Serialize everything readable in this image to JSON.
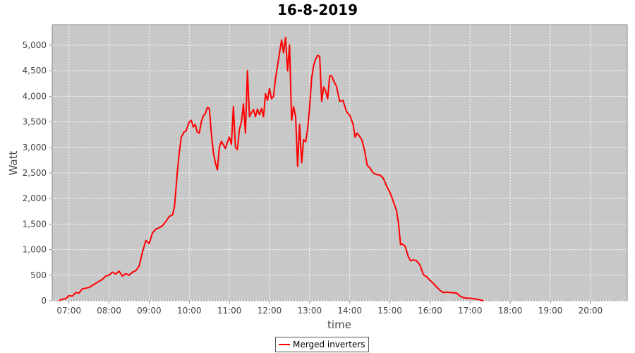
{
  "chart_data": {
    "type": "line",
    "title": "16-8-2019",
    "xlabel": "time",
    "ylabel": "Watt",
    "xlim": [
      "06:35",
      "20:55"
    ],
    "ylim": [
      0,
      5400
    ],
    "x_ticks": [
      "07:00",
      "08:00",
      "09:00",
      "10:00",
      "11:00",
      "12:00",
      "13:00",
      "14:00",
      "15:00",
      "16:00",
      "17:00",
      "18:00",
      "19:00",
      "20:00"
    ],
    "y_ticks": [
      0,
      500,
      1000,
      1500,
      2000,
      2500,
      3000,
      3500,
      4000,
      4500,
      5000
    ],
    "y_tick_labels": [
      "0",
      "500",
      "1,000",
      "1,500",
      "2,000",
      "2,500",
      "3,000",
      "3,500",
      "4,000",
      "4,500",
      "5,000"
    ],
    "grid": true,
    "legend_position": "bottom-center",
    "series": [
      {
        "name": "Merged inverters",
        "color": "#ff0000",
        "points": [
          [
            "06:45",
            0
          ],
          [
            "06:50",
            30
          ],
          [
            "06:55",
            40
          ],
          [
            "07:00",
            100
          ],
          [
            "07:05",
            90
          ],
          [
            "07:10",
            160
          ],
          [
            "07:15",
            150
          ],
          [
            "07:20",
            230
          ],
          [
            "07:30",
            260
          ],
          [
            "07:40",
            340
          ],
          [
            "07:50",
            420
          ],
          [
            "07:55",
            480
          ],
          [
            "08:00",
            500
          ],
          [
            "08:05",
            560
          ],
          [
            "08:10",
            520
          ],
          [
            "08:15",
            580
          ],
          [
            "08:20",
            480
          ],
          [
            "08:25",
            530
          ],
          [
            "08:30",
            500
          ],
          [
            "08:35",
            560
          ],
          [
            "08:40",
            590
          ],
          [
            "08:45",
            680
          ],
          [
            "08:50",
            950
          ],
          [
            "08:55",
            1180
          ],
          [
            "09:00",
            1120
          ],
          [
            "09:05",
            1330
          ],
          [
            "09:10",
            1400
          ],
          [
            "09:15",
            1430
          ],
          [
            "09:20",
            1470
          ],
          [
            "09:25",
            1550
          ],
          [
            "09:30",
            1650
          ],
          [
            "09:35",
            1680
          ],
          [
            "09:38",
            1850
          ],
          [
            "09:42",
            2500
          ],
          [
            "09:45",
            2900
          ],
          [
            "09:48",
            3200
          ],
          [
            "09:52",
            3300
          ],
          [
            "09:55",
            3320
          ],
          [
            "10:00",
            3500
          ],
          [
            "10:03",
            3530
          ],
          [
            "10:06",
            3400
          ],
          [
            "10:09",
            3450
          ],
          [
            "10:12",
            3300
          ],
          [
            "10:15",
            3280
          ],
          [
            "10:18",
            3500
          ],
          [
            "10:21",
            3620
          ],
          [
            "10:24",
            3660
          ],
          [
            "10:27",
            3780
          ],
          [
            "10:30",
            3760
          ],
          [
            "10:33",
            3280
          ],
          [
            "10:36",
            2900
          ],
          [
            "10:39",
            2700
          ],
          [
            "10:42",
            2560
          ],
          [
            "10:45",
            3000
          ],
          [
            "10:48",
            3120
          ],
          [
            "10:51",
            3050
          ],
          [
            "10:54",
            2980
          ],
          [
            "10:57",
            3100
          ],
          [
            "11:00",
            3200
          ],
          [
            "11:03",
            3060
          ],
          [
            "11:06",
            3800
          ],
          [
            "11:09",
            3000
          ],
          [
            "11:12",
            2960
          ],
          [
            "11:15",
            3350
          ],
          [
            "11:18",
            3500
          ],
          [
            "11:21",
            3850
          ],
          [
            "11:24",
            3280
          ],
          [
            "11:27",
            4500
          ],
          [
            "11:30",
            3600
          ],
          [
            "11:33",
            3680
          ],
          [
            "11:36",
            3740
          ],
          [
            "11:39",
            3600
          ],
          [
            "11:42",
            3750
          ],
          [
            "11:45",
            3640
          ],
          [
            "11:48",
            3760
          ],
          [
            "11:51",
            3600
          ],
          [
            "11:54",
            4050
          ],
          [
            "11:57",
            3920
          ],
          [
            "12:00",
            4150
          ],
          [
            "12:03",
            3950
          ],
          [
            "12:06",
            4000
          ],
          [
            "12:09",
            4350
          ],
          [
            "12:12",
            4600
          ],
          [
            "12:15",
            4850
          ],
          [
            "12:18",
            5100
          ],
          [
            "12:21",
            4850
          ],
          [
            "12:24",
            5150
          ],
          [
            "12:27",
            4500
          ],
          [
            "12:30",
            5000
          ],
          [
            "12:33",
            3530
          ],
          [
            "12:36",
            3800
          ],
          [
            "12:39",
            3600
          ],
          [
            "12:42",
            2630
          ],
          [
            "12:45",
            3450
          ],
          [
            "12:48",
            2700
          ],
          [
            "12:51",
            3150
          ],
          [
            "12:54",
            3110
          ],
          [
            "12:57",
            3350
          ],
          [
            "13:00",
            3800
          ],
          [
            "13:03",
            4350
          ],
          [
            "13:06",
            4600
          ],
          [
            "13:09",
            4730
          ],
          [
            "13:12",
            4800
          ],
          [
            "13:15",
            4780
          ],
          [
            "13:18",
            3900
          ],
          [
            "13:21",
            4180
          ],
          [
            "13:24",
            4100
          ],
          [
            "13:27",
            3950
          ],
          [
            "13:30",
            4400
          ],
          [
            "13:33",
            4400
          ],
          [
            "13:36",
            4300
          ],
          [
            "13:40",
            4200
          ],
          [
            "13:45",
            3900
          ],
          [
            "13:50",
            3920
          ],
          [
            "13:55",
            3700
          ],
          [
            "14:00",
            3630
          ],
          [
            "14:05",
            3450
          ],
          [
            "14:08",
            3200
          ],
          [
            "14:11",
            3280
          ],
          [
            "14:14",
            3230
          ],
          [
            "14:18",
            3150
          ],
          [
            "14:22",
            2950
          ],
          [
            "14:26",
            2650
          ],
          [
            "14:30",
            2600
          ],
          [
            "14:35",
            2500
          ],
          [
            "14:40",
            2470
          ],
          [
            "14:45",
            2460
          ],
          [
            "14:50",
            2400
          ],
          [
            "14:55",
            2250
          ],
          [
            "15:00",
            2120
          ],
          [
            "15:05",
            1950
          ],
          [
            "15:10",
            1760
          ],
          [
            "15:13",
            1500
          ],
          [
            "15:16",
            1100
          ],
          [
            "15:19",
            1110
          ],
          [
            "15:23",
            1060
          ],
          [
            "15:27",
            880
          ],
          [
            "15:31",
            780
          ],
          [
            "15:35",
            800
          ],
          [
            "15:40",
            780
          ],
          [
            "15:45",
            700
          ],
          [
            "15:50",
            510
          ],
          [
            "15:55",
            470
          ],
          [
            "16:00",
            400
          ],
          [
            "16:05",
            340
          ],
          [
            "16:10",
            270
          ],
          [
            "16:15",
            200
          ],
          [
            "16:20",
            160
          ],
          [
            "16:25",
            170
          ],
          [
            "16:30",
            160
          ],
          [
            "16:40",
            150
          ],
          [
            "16:45",
            90
          ],
          [
            "16:50",
            60
          ],
          [
            "16:55",
            50
          ],
          [
            "17:00",
            50
          ],
          [
            "17:05",
            40
          ],
          [
            "17:10",
            30
          ],
          [
            "17:20",
            0
          ]
        ]
      }
    ]
  }
}
